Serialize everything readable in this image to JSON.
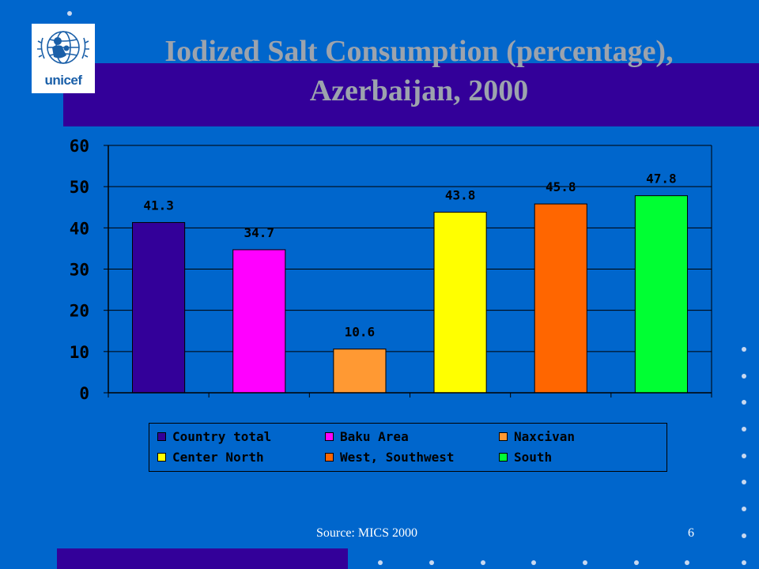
{
  "slide": {
    "title_line1": "Iodized Salt Consumption (percentage),",
    "title_line2": "Azerbaijan, 2000",
    "source": "Source: MICS 2000",
    "page_number": "6",
    "logo_text": "unicef"
  },
  "colors": {
    "background": "#0066cc",
    "band": "#330099",
    "title_text": "#9ca3ad"
  },
  "chart_data": {
    "type": "bar",
    "title": "",
    "xlabel": "",
    "ylabel": "",
    "ylim": [
      0,
      60
    ],
    "yticks": [
      0,
      10,
      20,
      30,
      40,
      50,
      60
    ],
    "grid": true,
    "legend_position": "bottom",
    "categories": [
      "Country total",
      "Baku Area",
      "Naxcivan",
      "Center North",
      "West, Southwest",
      "South"
    ],
    "values": [
      41.3,
      34.7,
      10.6,
      43.8,
      45.8,
      47.8
    ],
    "data_labels": [
      "41.3",
      "34.7",
      "10.6",
      "43.8",
      "45.8",
      "47.8"
    ],
    "colors": [
      "#330099",
      "#ff00ff",
      "#ff9933",
      "#ffff00",
      "#ff6600",
      "#00ff33"
    ]
  }
}
